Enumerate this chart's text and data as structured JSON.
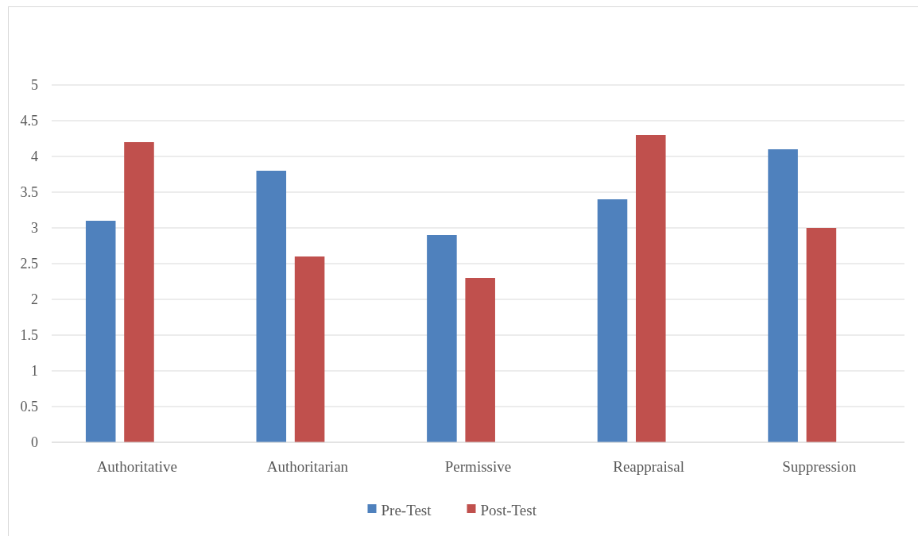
{
  "chart_data": {
    "type": "bar",
    "categories": [
      "Authoritative",
      "Authoritarian",
      "Permissive",
      "Reappraisal",
      "Suppression"
    ],
    "series": [
      {
        "name": "Pre-Test",
        "color": "#4f81bd",
        "values": [
          3.1,
          3.8,
          2.9,
          3.4,
          4.1
        ]
      },
      {
        "name": "Post-Test",
        "color": "#c0504d",
        "values": [
          4.2,
          2.6,
          2.3,
          4.3,
          3.0
        ]
      }
    ],
    "ylim": [
      0,
      5
    ],
    "yticks": [
      0,
      0.5,
      1,
      1.5,
      2,
      2.5,
      3,
      3.5,
      4,
      4.5,
      5
    ],
    "grid": "y",
    "legend": "bottom"
  }
}
